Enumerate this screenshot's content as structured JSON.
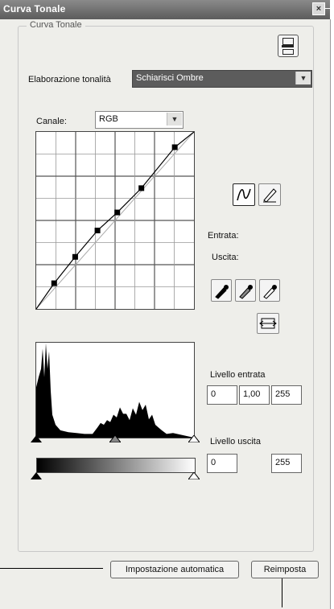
{
  "window": {
    "title": "Curva Tonale",
    "close_glyph": "×"
  },
  "group": {
    "label": "Curva Tonale"
  },
  "elaborazione": {
    "label": "Elaborazione tonalità",
    "value": "Schiarisci Ombre"
  },
  "canale": {
    "label": "Canale:",
    "value": "RGB"
  },
  "curve": {
    "points": [
      [
        0,
        0
      ],
      [
        29,
        37
      ],
      [
        63,
        75
      ],
      [
        99,
        113
      ],
      [
        131,
        139
      ],
      [
        170,
        174
      ],
      [
        224,
        233
      ],
      [
        255,
        255
      ]
    ],
    "grid_divisions": 8,
    "line_color": "#000000"
  },
  "tools": {
    "curve_tool_icon": "curve-tool-icon",
    "pencil_tool_icon": "pencil-tool-icon"
  },
  "entrata_label": "Entrata:",
  "uscita_label": "Uscita:",
  "eyedroppers": [
    "black-point-eyedropper-icon",
    "gray-point-eyedropper-icon",
    "white-point-eyedropper-icon"
  ],
  "histogram_icon": "auto-levels-icon",
  "livello_entrata": {
    "label": "Livello entrata",
    "black": "0",
    "gamma": "1,00",
    "white": "255"
  },
  "livello_uscita": {
    "label": "Livello uscita",
    "black": "0",
    "white": "255"
  },
  "buttons": {
    "auto": "Impostazione automatica",
    "reset": "Reimposta"
  }
}
